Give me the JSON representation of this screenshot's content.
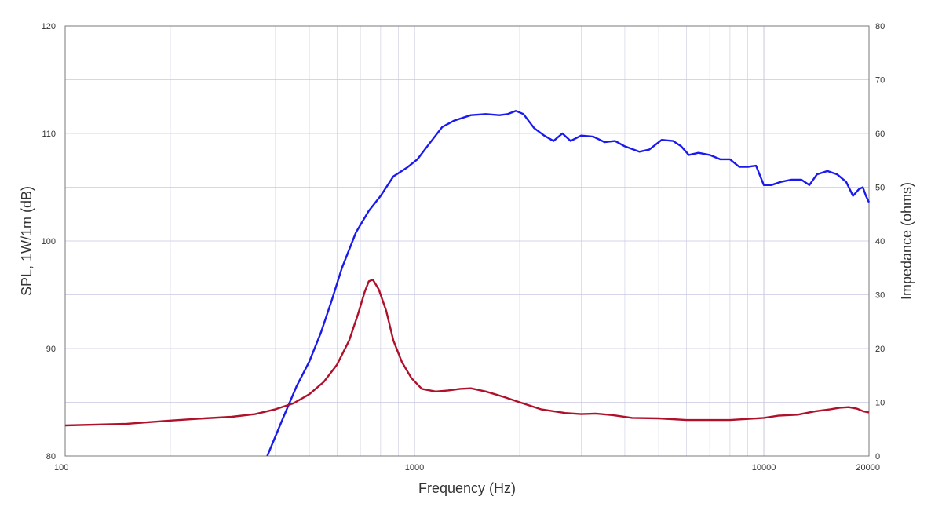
{
  "chart_data": {
    "type": "line",
    "xlabel": "Frequency (Hz)",
    "ylabel": "SPL, 1W/1m (dB)",
    "y2label": "Impedance (ohms)",
    "xscale": "log",
    "xlim": [
      100,
      20000
    ],
    "ylim": [
      80,
      120
    ],
    "y2lim": [
      0,
      80
    ],
    "grid": true,
    "x_ticks": [
      {
        "value": 100,
        "label": "100"
      },
      {
        "value": 1000,
        "label": "1000"
      },
      {
        "value": 10000,
        "label": "10000"
      },
      {
        "value": 20000,
        "label": "20000"
      }
    ],
    "y_ticks": [
      80,
      90,
      100,
      110,
      120
    ],
    "y2_ticks": [
      0,
      10,
      20,
      30,
      40,
      50,
      60,
      70,
      80
    ],
    "colors": {
      "spl": "#1a1aee",
      "impedance": "#b0102a",
      "grid": "#c8c8e0",
      "frame": "#7a7a7a"
    },
    "series": [
      {
        "axis": "left",
        "color": "#1a1aee",
        "points": [
          [
            379,
            80
          ],
          [
            420,
            83.5
          ],
          [
            460,
            86.5
          ],
          [
            500,
            88.8
          ],
          [
            540,
            91.5
          ],
          [
            580,
            94.5
          ],
          [
            620,
            97.5
          ],
          [
            680,
            100.8
          ],
          [
            740,
            102.8
          ],
          [
            800,
            104.2
          ],
          [
            870,
            106.0
          ],
          [
            950,
            106.8
          ],
          [
            1020,
            107.6
          ],
          [
            1100,
            109.0
          ],
          [
            1200,
            110.6
          ],
          [
            1300,
            111.2
          ],
          [
            1450,
            111.7
          ],
          [
            1600,
            111.8
          ],
          [
            1750,
            111.7
          ],
          [
            1850,
            111.8
          ],
          [
            1950,
            112.1
          ],
          [
            2050,
            111.8
          ],
          [
            2200,
            110.5
          ],
          [
            2350,
            109.8
          ],
          [
            2500,
            109.3
          ],
          [
            2650,
            110.0
          ],
          [
            2800,
            109.3
          ],
          [
            3000,
            109.8
          ],
          [
            3250,
            109.7
          ],
          [
            3500,
            109.2
          ],
          [
            3750,
            109.3
          ],
          [
            4000,
            108.8
          ],
          [
            4400,
            108.3
          ],
          [
            4700,
            108.5
          ],
          [
            5100,
            109.4
          ],
          [
            5500,
            109.3
          ],
          [
            5800,
            108.8
          ],
          [
            6100,
            108.0
          ],
          [
            6500,
            108.2
          ],
          [
            7000,
            108.0
          ],
          [
            7500,
            107.6
          ],
          [
            8000,
            107.6
          ],
          [
            8500,
            106.9
          ],
          [
            9000,
            106.9
          ],
          [
            9500,
            107.0
          ],
          [
            10000,
            105.2
          ],
          [
            10500,
            105.2
          ],
          [
            11200,
            105.5
          ],
          [
            12000,
            105.7
          ],
          [
            12800,
            105.7
          ],
          [
            13500,
            105.2
          ],
          [
            14200,
            106.2
          ],
          [
            15200,
            106.5
          ],
          [
            16200,
            106.2
          ],
          [
            17200,
            105.5
          ],
          [
            18000,
            104.2
          ],
          [
            18700,
            104.8
          ],
          [
            19200,
            105.0
          ],
          [
            19600,
            104.2
          ],
          [
            20000,
            103.6
          ]
        ]
      },
      {
        "axis": "right",
        "color": "#b0102a",
        "points": [
          [
            100,
            5.7
          ],
          [
            150,
            6.0
          ],
          [
            200,
            6.6
          ],
          [
            250,
            7.0
          ],
          [
            300,
            7.3
          ],
          [
            350,
            7.8
          ],
          [
            400,
            8.7
          ],
          [
            450,
            9.8
          ],
          [
            500,
            11.5
          ],
          [
            550,
            13.8
          ],
          [
            600,
            17.0
          ],
          [
            650,
            21.5
          ],
          [
            690,
            26.5
          ],
          [
            720,
            30.5
          ],
          [
            740,
            32.5
          ],
          [
            760,
            32.8
          ],
          [
            790,
            31.0
          ],
          [
            830,
            27.0
          ],
          [
            870,
            21.5
          ],
          [
            920,
            17.5
          ],
          [
            980,
            14.5
          ],
          [
            1050,
            12.5
          ],
          [
            1150,
            12.0
          ],
          [
            1250,
            12.2
          ],
          [
            1350,
            12.5
          ],
          [
            1450,
            12.6
          ],
          [
            1600,
            12.0
          ],
          [
            1800,
            11.0
          ],
          [
            2000,
            10.0
          ],
          [
            2300,
            8.7
          ],
          [
            2700,
            8.0
          ],
          [
            3000,
            7.8
          ],
          [
            3300,
            7.9
          ],
          [
            3700,
            7.6
          ],
          [
            4200,
            7.1
          ],
          [
            5000,
            7.0
          ],
          [
            6000,
            6.7
          ],
          [
            7000,
            6.7
          ],
          [
            8000,
            6.7
          ],
          [
            9000,
            6.9
          ],
          [
            10000,
            7.1
          ],
          [
            11000,
            7.5
          ],
          [
            12500,
            7.7
          ],
          [
            14000,
            8.3
          ],
          [
            15500,
            8.7
          ],
          [
            16500,
            9.0
          ],
          [
            17500,
            9.1
          ],
          [
            18500,
            8.8
          ],
          [
            19300,
            8.3
          ],
          [
            20000,
            8.1
          ]
        ]
      }
    ]
  }
}
